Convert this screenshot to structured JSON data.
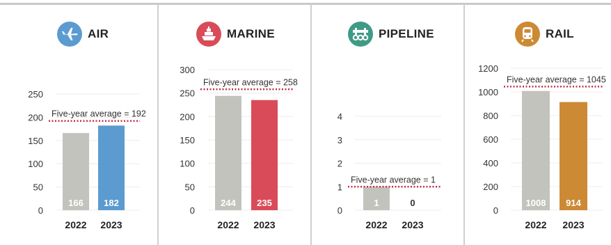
{
  "panels": [
    {
      "title": "AIR",
      "icon": "airplane-icon",
      "color": "#5b9bd0",
      "avg_label": "Five-year average = 192"
    },
    {
      "title": "MARINE",
      "icon": "ship-icon",
      "color": "#d94b58",
      "avg_label": "Five-year average = 258"
    },
    {
      "title": "PIPELINE",
      "icon": "pipeline-icon",
      "color": "#3f9a86",
      "avg_label": "Five-year average = 1"
    },
    {
      "title": "RAIL",
      "icon": "train-icon",
      "color": "#cc8a35",
      "avg_label": "Five-year average = 1045"
    }
  ],
  "colors": {
    "prior_year_bar": "#c3c3bd",
    "average_line": "#c0304a",
    "text": "#333333",
    "gridline": "#ececec"
  },
  "chart_data": [
    {
      "type": "bar",
      "title": "AIR",
      "categories": [
        "2022",
        "2023"
      ],
      "values": [
        166,
        182
      ],
      "data_labels": [
        "166",
        "182"
      ],
      "yticks": [
        0,
        50,
        100,
        150,
        200,
        250
      ],
      "ylim": [
        0,
        250
      ],
      "average": 192,
      "average_label": "Five-year average = 192"
    },
    {
      "type": "bar",
      "title": "MARINE",
      "categories": [
        "2022",
        "2023"
      ],
      "values": [
        244,
        235
      ],
      "data_labels": [
        "244",
        "235"
      ],
      "yticks": [
        0,
        50,
        100,
        150,
        200,
        250,
        300
      ],
      "ylim": [
        0,
        300
      ],
      "average": 258,
      "average_label": "Five-year average = 258"
    },
    {
      "type": "bar",
      "title": "PIPELINE",
      "categories": [
        "2022",
        "2023"
      ],
      "values": [
        1,
        0
      ],
      "data_labels": [
        "1",
        "0"
      ],
      "yticks": [
        0,
        1,
        2,
        3,
        4
      ],
      "ylim": [
        0,
        4
      ],
      "average": 1,
      "average_label": "Five-year average = 1"
    },
    {
      "type": "bar",
      "title": "RAIL",
      "categories": [
        "2022",
        "2023"
      ],
      "values": [
        1008,
        914
      ],
      "data_labels": [
        "1008",
        "914"
      ],
      "yticks": [
        0,
        200,
        400,
        600,
        800,
        1000,
        1200
      ],
      "ylim": [
        0,
        1200
      ],
      "average": 1045,
      "average_label": "Five-year average = 1045"
    }
  ]
}
